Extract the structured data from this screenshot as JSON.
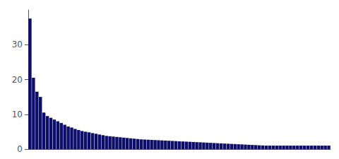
{
  "chart_data": {
    "type": "bar",
    "categories": [
      null,
      null,
      null,
      null,
      null,
      null,
      null,
      null,
      null,
      null,
      null,
      null,
      null,
      null,
      null,
      null,
      null,
      null,
      null,
      null,
      null,
      null,
      null,
      null,
      null,
      null,
      null,
      null,
      null,
      null,
      null,
      null,
      null,
      null,
      null,
      null,
      null,
      null,
      null,
      null,
      null,
      null,
      null,
      null,
      null,
      null,
      null,
      null,
      null,
      null,
      null,
      null,
      null,
      null,
      null,
      null,
      null,
      null,
      null,
      null,
      null,
      null,
      null,
      null,
      null,
      null,
      null,
      null,
      null,
      null,
      null,
      null,
      null,
      null,
      null,
      null,
      null,
      null,
      null,
      null,
      null,
      null,
      null,
      null,
      null,
      null,
      null
    ],
    "values": [
      37.5,
      20.5,
      16.5,
      15.0,
      10.5,
      9.5,
      9.0,
      8.5,
      8.0,
      7.5,
      7.0,
      6.5,
      6.2,
      5.8,
      5.5,
      5.2,
      5.0,
      4.8,
      4.6,
      4.4,
      4.2,
      4.0,
      3.8,
      3.7,
      3.6,
      3.5,
      3.4,
      3.3,
      3.2,
      3.1,
      3.0,
      2.9,
      2.8,
      2.75,
      2.7,
      2.65,
      2.6,
      2.55,
      2.5,
      2.45,
      2.4,
      2.35,
      2.3,
      2.25,
      2.2,
      2.15,
      2.1,
      2.05,
      2.0,
      1.95,
      1.9,
      1.85,
      1.8,
      1.75,
      1.7,
      1.65,
      1.6,
      1.55,
      1.5,
      1.45,
      1.4,
      1.35,
      1.3,
      1.25,
      1.2,
      1.15,
      1.1,
      1.05,
      1.0,
      1.0,
      1.0,
      1.0,
      1.0,
      1.0,
      1.0,
      1.0,
      1.0,
      1.0,
      1.0,
      1.0,
      1.0,
      1.0,
      1.0,
      1.0,
      1.0,
      1.0,
      1.0
    ],
    "color": "#0d0d6b",
    "ylim": [
      0,
      40
    ],
    "yticks": [
      0,
      10,
      20,
      30
    ],
    "grid": false,
    "tick_labels": "y"
  }
}
